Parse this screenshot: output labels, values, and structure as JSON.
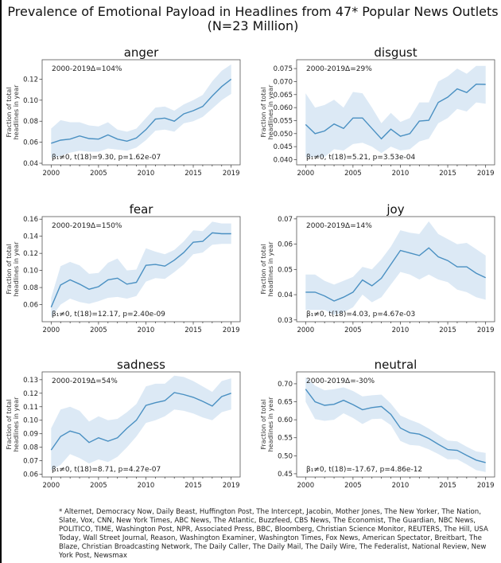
{
  "title_line1": "Prevalence of Emotional Payload in Headlines from 47* Popular News Outlets",
  "title_line2": "(N=23 Million)",
  "footnote": "* Alternet, Democracy Now, Daily Beast, Huffington Post, The Intercept, Jacobin, Mother Jones, The New Yorker, The Nation, Slate, Vox, CNN, New York Times, ABC News, The Atlantic, Buzzfeed, CBS News, The Economist, The Guardian, NBC News, POLITICO, TIME, Washington Post, NPR, Associated Press, BBC, Bloomberg, Christian Science Monitor, REUTERS, The Hill, USA Today, Wall Street Journal, Reason, Washington Examiner, Washington Times, Fox News, American Spectator, Breitbart, The Blaze, Christian Broadcasting Network, The Daily Caller, The Daily Mail, The Daily Wire, The Federalist, National Review, New York Post, Newsmax",
  "colors": {
    "line": "#4a90c2",
    "band": "#dce9f5"
  },
  "chart_data": [
    {
      "type": "line",
      "title": "anger",
      "ylabel": [
        "Fraction of total",
        "headlines in year"
      ],
      "delta": "2000-2019Δ=104%",
      "stat": "β₁≠0, t(18)=9.30, p=1.62e-07",
      "x": [
        2000,
        2001,
        2002,
        2003,
        2004,
        2005,
        2006,
        2007,
        2008,
        2009,
        2010,
        2011,
        2012,
        2013,
        2014,
        2015,
        2016,
        2017,
        2018,
        2019
      ],
      "xticks": [
        2000,
        2005,
        2010,
        2015,
        2019
      ],
      "ylim": [
        0.0385,
        0.1385
      ],
      "yticks": [
        "0.04",
        "0.06",
        "0.08",
        "0.10",
        "0.12"
      ],
      "values": [
        0.059,
        0.062,
        0.063,
        0.066,
        0.0635,
        0.063,
        0.067,
        0.063,
        0.061,
        0.064,
        0.072,
        0.082,
        0.083,
        0.08,
        0.087,
        0.09,
        0.094,
        0.104,
        0.113,
        0.12
      ],
      "upper": [
        0.073,
        0.081,
        0.079,
        0.079,
        0.076,
        0.075,
        0.079,
        0.072,
        0.07,
        0.073,
        0.083,
        0.093,
        0.094,
        0.09,
        0.096,
        0.1,
        0.105,
        0.118,
        0.128,
        0.134
      ],
      "lower": [
        0.045,
        0.047,
        0.05,
        0.052,
        0.051,
        0.051,
        0.054,
        0.053,
        0.052,
        0.055,
        0.062,
        0.071,
        0.072,
        0.07,
        0.078,
        0.08,
        0.084,
        0.092,
        0.1,
        0.106
      ]
    },
    {
      "type": "line",
      "title": "disgust",
      "ylabel": [
        "Fraction of total",
        "headlines in year"
      ],
      "delta": "2000-2019Δ=29%",
      "stat": "β₁≠0, t(18)=5.21, p=3.53e-04",
      "x": [
        2000,
        2001,
        2002,
        2003,
        2004,
        2005,
        2006,
        2007,
        2008,
        2009,
        2010,
        2011,
        2012,
        2013,
        2014,
        2015,
        2016,
        2017,
        2018,
        2019
      ],
      "xticks": [
        2000,
        2005,
        2010,
        2015,
        2019
      ],
      "ylim": [
        0.038,
        0.0784
      ],
      "yticks": [
        "0.040",
        "0.045",
        "0.050",
        "0.055",
        "0.060",
        "0.065",
        "0.070",
        "0.075"
      ],
      "values": [
        0.0535,
        0.05,
        0.051,
        0.0537,
        0.052,
        0.056,
        0.056,
        0.052,
        0.048,
        0.0517,
        0.049,
        0.05,
        0.0548,
        0.0551,
        0.062,
        0.064,
        0.0672,
        0.0658,
        0.069,
        0.0689
      ],
      "upper": [
        0.0655,
        0.06,
        0.061,
        0.063,
        0.06,
        0.066,
        0.0655,
        0.06,
        0.054,
        0.058,
        0.0545,
        0.056,
        0.062,
        0.062,
        0.07,
        0.072,
        0.075,
        0.073,
        0.076,
        0.076
      ],
      "lower": [
        0.041,
        0.041,
        0.041,
        0.044,
        0.0435,
        0.046,
        0.0465,
        0.045,
        0.0425,
        0.045,
        0.0435,
        0.044,
        0.047,
        0.048,
        0.054,
        0.056,
        0.0595,
        0.0585,
        0.062,
        0.0615
      ]
    },
    {
      "type": "line",
      "title": "fear",
      "ylabel": [
        "Fraction of total",
        "headlines in year"
      ],
      "delta": "2000-2019Δ=150%",
      "stat": "β₁≠0, t(18)=12.17, p=2.40e-09",
      "x": [
        2000,
        2001,
        2002,
        2003,
        2004,
        2005,
        2006,
        2007,
        2008,
        2009,
        2010,
        2011,
        2012,
        2013,
        2014,
        2015,
        2016,
        2017,
        2018,
        2019
      ],
      "xticks": [
        2000,
        2005,
        2010,
        2015,
        2019
      ],
      "ylim": [
        0.04,
        0.163
      ],
      "yticks": [
        "0.06",
        "0.08",
        "0.10",
        "0.12",
        "0.14",
        "0.16"
      ],
      "values": [
        0.057,
        0.083,
        0.089,
        0.084,
        0.078,
        0.081,
        0.089,
        0.091,
        0.084,
        0.086,
        0.106,
        0.107,
        0.105,
        0.112,
        0.121,
        0.133,
        0.134,
        0.144,
        0.143,
        0.143
      ],
      "upper": [
        0.068,
        0.105,
        0.11,
        0.106,
        0.096,
        0.097,
        0.109,
        0.114,
        0.1,
        0.101,
        0.126,
        0.122,
        0.119,
        0.124,
        0.134,
        0.147,
        0.146,
        0.157,
        0.155,
        0.155
      ],
      "lower": [
        0.045,
        0.06,
        0.067,
        0.063,
        0.061,
        0.064,
        0.068,
        0.069,
        0.067,
        0.07,
        0.087,
        0.091,
        0.09,
        0.098,
        0.107,
        0.119,
        0.121,
        0.13,
        0.131,
        0.131
      ]
    },
    {
      "type": "line",
      "title": "joy",
      "ylabel": [
        "Fraction of total",
        "headlines in year"
      ],
      "delta": "2000-2019Δ=14%",
      "stat": "β₁≠0, t(18)=4.03, p=4.67e-03",
      "x": [
        2000,
        2001,
        2002,
        2003,
        2004,
        2005,
        2006,
        2007,
        2008,
        2009,
        2010,
        2011,
        2012,
        2013,
        2014,
        2015,
        2016,
        2017,
        2018,
        2019
      ],
      "xticks": [
        2000,
        2005,
        2010,
        2015,
        2019
      ],
      "ylim": [
        0.0293,
        0.0709
      ],
      "yticks": [
        "0.03",
        "0.04",
        "0.05",
        "0.06",
        "0.07"
      ],
      "values": [
        0.041,
        0.041,
        0.0395,
        0.0375,
        0.039,
        0.041,
        0.0458,
        0.0435,
        0.0465,
        0.052,
        0.0575,
        0.0565,
        0.0555,
        0.0585,
        0.055,
        0.0535,
        0.051,
        0.051,
        0.0485,
        0.0467
      ],
      "upper": [
        0.048,
        0.048,
        0.0455,
        0.044,
        0.0455,
        0.047,
        0.051,
        0.05,
        0.054,
        0.059,
        0.0655,
        0.0645,
        0.064,
        0.069,
        0.064,
        0.062,
        0.06,
        0.0605,
        0.058,
        0.0555
      ],
      "lower": [
        0.034,
        0.034,
        0.034,
        0.032,
        0.033,
        0.035,
        0.04,
        0.037,
        0.039,
        0.044,
        0.049,
        0.048,
        0.046,
        0.048,
        0.046,
        0.045,
        0.042,
        0.041,
        0.039,
        0.038
      ]
    },
    {
      "type": "line",
      "title": "sadness",
      "ylabel": [
        "Fraction of total",
        "headlines in year"
      ],
      "delta": "2000-2019Δ=54%",
      "stat": "β₁≠0, t(18)=8.71, p=4.27e-07",
      "x": [
        2000,
        2001,
        2002,
        2003,
        2004,
        2005,
        2006,
        2007,
        2008,
        2009,
        2010,
        2011,
        2012,
        2013,
        2014,
        2015,
        2016,
        2017,
        2018,
        2019
      ],
      "xticks": [
        2000,
        2005,
        2010,
        2015,
        2019
      ],
      "ylim": [
        0.058,
        0.1358
      ],
      "yticks": [
        "0.06",
        "0.07",
        "0.08",
        "0.09",
        "0.10",
        "0.11",
        "0.12",
        "0.13"
      ],
      "values": [
        0.078,
        0.088,
        0.092,
        0.09,
        0.0835,
        0.087,
        0.0845,
        0.087,
        0.094,
        0.1,
        0.111,
        0.113,
        0.1145,
        0.1205,
        0.119,
        0.117,
        0.114,
        0.1105,
        0.1175,
        0.12
      ],
      "upper": [
        0.094,
        0.108,
        0.11,
        0.107,
        0.099,
        0.103,
        0.1,
        0.101,
        0.106,
        0.112,
        0.125,
        0.127,
        0.127,
        0.133,
        0.132,
        0.129,
        0.125,
        0.121,
        0.129,
        0.131
      ],
      "lower": [
        0.063,
        0.067,
        0.075,
        0.072,
        0.068,
        0.071,
        0.069,
        0.073,
        0.08,
        0.088,
        0.098,
        0.1,
        0.103,
        0.108,
        0.107,
        0.105,
        0.102,
        0.1,
        0.106,
        0.108
      ]
    },
    {
      "type": "line",
      "title": "neutral",
      "ylabel": [
        "Fraction of total",
        "headlines in year"
      ],
      "delta": "2000-2019Δ=-30%",
      "stat": "β₁≠0, t(18)=-17.67, p=4.86e-12",
      "x": [
        2000,
        2001,
        2002,
        2003,
        2004,
        2005,
        2006,
        2007,
        2008,
        2009,
        2010,
        2011,
        2012,
        2013,
        2014,
        2015,
        2016,
        2017,
        2018,
        2019
      ],
      "xticks": [
        2000,
        2005,
        2010,
        2015,
        2019
      ],
      "ylim": [
        0.441,
        0.733
      ],
      "yticks": [
        "0.45",
        "0.50",
        "0.55",
        "0.60",
        "0.65",
        "0.70"
      ],
      "values": [
        0.685,
        0.65,
        0.64,
        0.643,
        0.654,
        0.642,
        0.628,
        0.634,
        0.637,
        0.615,
        0.577,
        0.564,
        0.56,
        0.548,
        0.532,
        0.517,
        0.515,
        0.501,
        0.488,
        0.481
      ],
      "upper": [
        0.718,
        0.695,
        0.682,
        0.685,
        0.69,
        0.68,
        0.665,
        0.668,
        0.67,
        0.645,
        0.612,
        0.6,
        0.59,
        0.575,
        0.558,
        0.542,
        0.54,
        0.525,
        0.512,
        0.508
      ],
      "lower": [
        0.65,
        0.602,
        0.597,
        0.6,
        0.618,
        0.605,
        0.588,
        0.602,
        0.603,
        0.585,
        0.541,
        0.53,
        0.528,
        0.518,
        0.505,
        0.49,
        0.49,
        0.476,
        0.46,
        0.455
      ]
    }
  ]
}
